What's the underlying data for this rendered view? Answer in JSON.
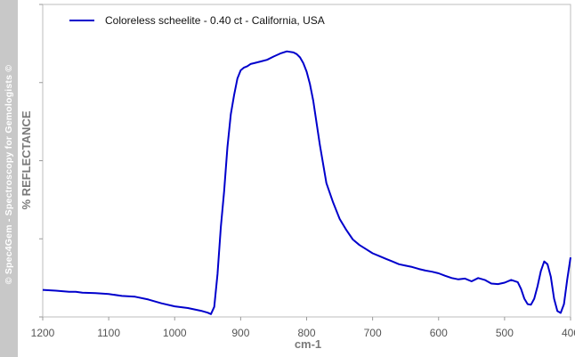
{
  "watermark": "© Spec4Gem - Spectroscopy for Gemologists ©",
  "chart_data": {
    "type": "line",
    "title": "",
    "xlabel": "cm-1",
    "ylabel": "% REFLECTANCE",
    "xlim": [
      1200,
      400
    ],
    "x_reversed": true,
    "ylim": [
      0,
      100
    ],
    "y_tick_labels_shown": false,
    "x_ticks": [
      1200,
      1100,
      1000,
      900,
      800,
      700,
      600,
      500,
      400
    ],
    "grid": false,
    "legend_position": "top-left",
    "series": [
      {
        "name": "Coloreless scheelite - 0.40 ct - California, USA",
        "color": "#0000cc",
        "x": [
          1200,
          1180,
          1160,
          1150,
          1140,
          1120,
          1100,
          1080,
          1060,
          1040,
          1020,
          1000,
          980,
          960,
          950,
          945,
          940,
          935,
          930,
          925,
          920,
          915,
          910,
          905,
          900,
          895,
          890,
          885,
          880,
          870,
          860,
          850,
          840,
          830,
          820,
          815,
          810,
          805,
          800,
          795,
          790,
          785,
          780,
          770,
          760,
          750,
          740,
          730,
          720,
          710,
          700,
          690,
          680,
          670,
          660,
          650,
          640,
          630,
          620,
          610,
          600,
          590,
          580,
          570,
          560,
          550,
          540,
          530,
          520,
          510,
          500,
          490,
          480,
          475,
          470,
          465,
          460,
          455,
          450,
          445,
          440,
          435,
          430,
          425,
          420,
          415,
          410,
          405,
          400
        ],
        "y": [
          9.2,
          8.9,
          8.5,
          8.5,
          8.2,
          8.0,
          7.7,
          7.0,
          6.7,
          5.7,
          4.3,
          3.2,
          2.6,
          1.6,
          0.9,
          0.4,
          3.0,
          15.0,
          32.0,
          45.0,
          61.0,
          73.0,
          80.0,
          86.0,
          89.0,
          90.0,
          90.5,
          91.3,
          91.6,
          92.2,
          92.8,
          94.0,
          95.1,
          95.9,
          95.5,
          94.9,
          93.7,
          91.6,
          88.5,
          84.0,
          78.0,
          70.0,
          62.0,
          48.0,
          41.0,
          35.0,
          31.0,
          27.5,
          25.5,
          24.0,
          22.5,
          21.5,
          20.5,
          19.5,
          18.5,
          18.0,
          17.5,
          16.8,
          16.2,
          15.8,
          15.2,
          14.3,
          13.5,
          13.0,
          13.3,
          12.3,
          13.5,
          12.8,
          11.5,
          11.3,
          11.8,
          12.8,
          12.0,
          9.5,
          6.0,
          4.0,
          3.8,
          6.0,
          10.5,
          16.0,
          19.5,
          18.5,
          14.0,
          6.0,
          1.5,
          0.8,
          4.0,
          13.0,
          21.0
        ]
      }
    ]
  }
}
